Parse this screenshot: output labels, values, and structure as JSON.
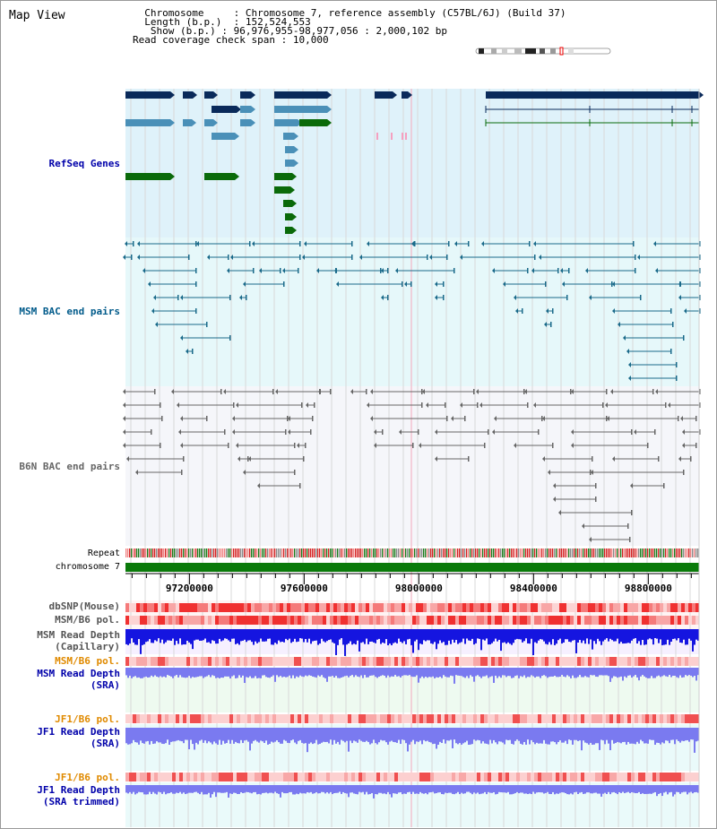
{
  "panel_title": "Map View",
  "info": {
    "chromosome_label": "Chromosome",
    "chromosome_value": "Chromosome 7, reference assembly (C57BL/6J) (Build 37)",
    "length_label": "Length (b.p.)",
    "length_value": "152,524,553",
    "show_label": "Show (b.p.)",
    "show_value": "96,976,955-98,977,056 : 2,000,102 bp",
    "coverage_label": "Read coverage check span",
    "coverage_value": "10,000"
  },
  "tracks": {
    "refseq": "RefSeq Genes",
    "msm_bac": "MSM BAC end pairs",
    "b6n_bac": "B6N BAC end pairs",
    "repeat": "Repeat",
    "chromosome": "chromosome 7",
    "dbsnp": "dbSNP(Mouse)",
    "msm_b6_pol": "MSM/B6 pol.",
    "msm_depth_cap_1": "MSM Read Depth",
    "msm_depth_cap_2": "(Capillary)",
    "msm_b6_pol_2": "MSM/B6 pol.",
    "msm_depth_sra_1": "MSM Read Depth",
    "msm_depth_sra_2": "(SRA)",
    "jf1_b6_pol": "JF1/B6 pol.",
    "jf1_depth_sra_1": "JF1 Read Depth",
    "jf1_depth_sra_2": "(SRA)",
    "jf1_b6_pol_2": "JF1/B6 pol.",
    "jf1_depth_trim_1": "JF1 Read Depth",
    "jf1_depth_trim_2": "(SRA trimmed)"
  },
  "axis": {
    "start_bp": 96976955,
    "end_bp": 98977056,
    "ticks": [
      "97200000",
      "97600000",
      "98000000",
      "98400000",
      "98800000"
    ]
  },
  "colors": {
    "refseq_bg": "#dff2fa",
    "msm_bg": "#e6f8fa",
    "b6n_bg": "#f5f6fa",
    "gene_navy": "#0a2a5a",
    "gene_blue": "#4a90b8",
    "gene_green": "#0a6a0a",
    "bac_teal": "#1a6a8a",
    "bac_gray": "#666666",
    "depth_blue": "#1515e0",
    "depth_lightblue": "#7a7af0",
    "label_blue": "#0000aa",
    "label_teal": "#005a8a",
    "label_orange": "#e08a00",
    "chromosome_green": "#0a7a0a"
  }
}
